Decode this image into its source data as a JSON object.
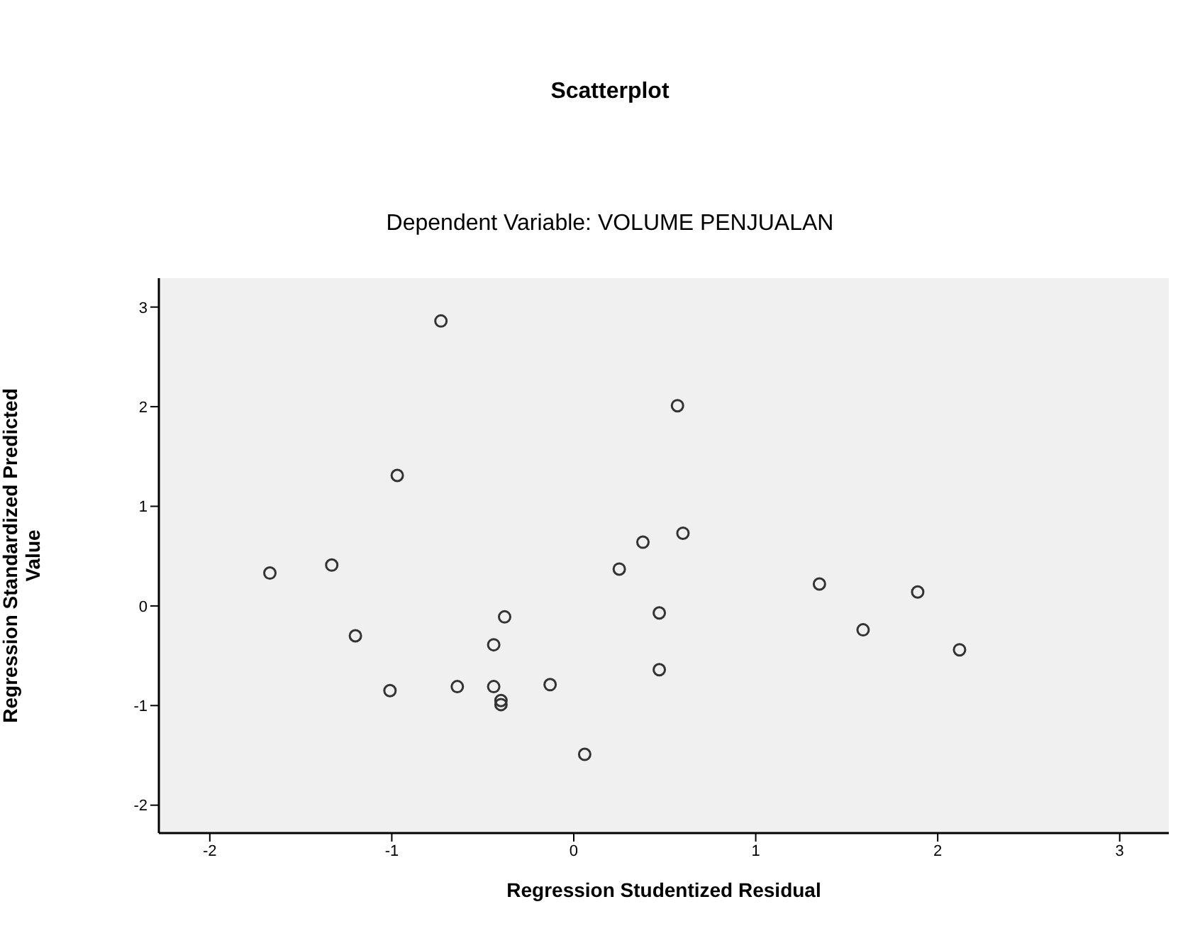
{
  "chart_data": {
    "type": "scatter",
    "title": "Scatterplot",
    "subtitle": "Dependent Variable: VOLUME PENJUALAN",
    "xlabel": "Regression Studentized Residual",
    "ylabel": "Regression Standardized Predicted Value",
    "x": [
      -0.73,
      -0.97,
      -1.67,
      -1.33,
      -1.2,
      -1.01,
      -0.64,
      -0.38,
      -0.44,
      -0.44,
      -0.4,
      -0.4,
      -0.13,
      0.06,
      0.57,
      0.38,
      0.6,
      0.25,
      1.35,
      1.89,
      0.47,
      1.59,
      2.12,
      0.47
    ],
    "series": [
      {
        "color": "#333333",
        "values": [
          2.86,
          1.31,
          0.33,
          0.41,
          -0.3,
          -0.85,
          -0.81,
          -0.11,
          -0.39,
          -0.81,
          -0.95,
          -0.99,
          -0.79,
          -1.49,
          2.01,
          0.64,
          0.73,
          0.37,
          0.22,
          0.14,
          -0.07,
          -0.24,
          -0.44,
          -0.64
        ]
      }
    ],
    "xlim": [
      -2.28,
      3.27
    ],
    "xticks": [
      -2,
      -1,
      0,
      1,
      2,
      3
    ],
    "ylim": [
      -2.28,
      3.29
    ],
    "yticks": [
      -2,
      -1,
      0,
      1,
      2,
      3
    ],
    "marker": "circle",
    "grid": false,
    "legend": false
  }
}
